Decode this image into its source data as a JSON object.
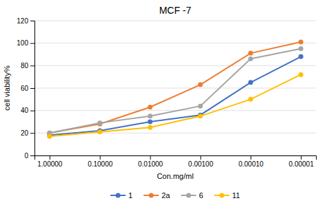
{
  "chart_data": {
    "type": "line",
    "title": "MCF -7",
    "xlabel": "Con.mg/ml",
    "ylabel": "cell viability%",
    "categories": [
      "1.00000",
      "0.10000",
      "0.01000",
      "0.00100",
      "0.00010",
      "0.00001"
    ],
    "series": [
      {
        "name": "1",
        "color": "#4472C4",
        "values": [
          18,
          22,
          30,
          36,
          65,
          88
        ]
      },
      {
        "name": "2a",
        "color": "#ED7D31",
        "values": [
          20,
          28,
          43,
          63,
          91,
          101
        ]
      },
      {
        "name": "6",
        "color": "#A5A5A5",
        "values": [
          20,
          29,
          35,
          44,
          86,
          95
        ]
      },
      {
        "name": "11",
        "color": "#FFC000",
        "values": [
          17,
          21,
          25,
          35,
          50,
          72
        ]
      }
    ],
    "ylim": [
      0,
      120
    ],
    "yticks": [
      0,
      20,
      40,
      60,
      80,
      100,
      120
    ],
    "grid": "y",
    "marker": "circle",
    "legend": "bottom"
  }
}
